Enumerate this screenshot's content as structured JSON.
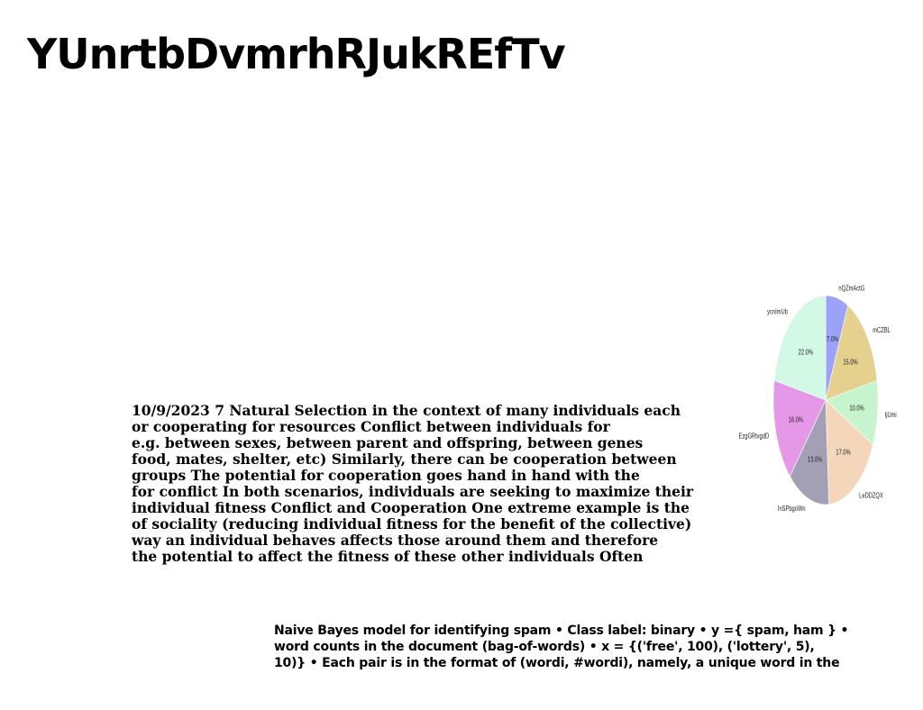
{
  "page": {
    "title": "YUnrtbDvmrhRJukREfTv"
  },
  "main_text": {
    "lines": [
      "10/9/2023 7 Natural Selection in the context of many individuals each",
      "or cooperating for resources Conflict between individuals for",
      "e.g. between sexes, between parent and offspring, between genes",
      "food, mates, shelter, etc) Similarly, there can be cooperation between",
      "groups The potential for cooperation goes hand in hand with the",
      "for conflict In both scenarios, individuals are seeking to maximize their",
      "individual fitness Conflict and Cooperation One extreme example is the",
      "of sociality (reducing individual fitness for the benefit of the collective)",
      "way an individual behaves affects those around them and therefore",
      "the potential to affect the fitness of these other individuals Often"
    ]
  },
  "naive_bayes_text": {
    "lines": [
      "Naive Bayes model for identifying spam • Class label: binary • y ={ spam, ham } •",
      "word counts in the document (bag-of-words) • x = {('free', 100), ('lottery', 5),",
      "10)} • Each pair is in the format of (wordi, #wordi), namely, a unique word in the"
    ]
  },
  "chart_data": {
    "type": "pie",
    "title": "",
    "start_angle_deg": 90,
    "direction": "clockwise",
    "slices": [
      {
        "label": "nQZmActG",
        "value": 7.0,
        "pct_label": "7.0%",
        "color": "#9aa3f7"
      },
      {
        "label": "mCZBL",
        "value": 15.0,
        "pct_label": "15.0%",
        "color": "#e6d08e"
      },
      {
        "label": "IjUmi",
        "value": 10.0,
        "pct_label": "10.0%",
        "color": "#c6f4cc"
      },
      {
        "label": "LeDDZQX",
        "value": 17.0,
        "pct_label": "17.0%",
        "color": "#f4d7bb"
      },
      {
        "label": "InSPbgoWn",
        "value": 13.0,
        "pct_label": "13.0%",
        "color": "#a3a0b6"
      },
      {
        "label": "EzgGRtvgdD",
        "value": 16.0,
        "pct_label": "16.0%",
        "color": "#e597e8"
      },
      {
        "label": "ycnImUb",
        "value": 22.0,
        "pct_label": "22.0%",
        "color": "#d2f9e6"
      }
    ]
  }
}
